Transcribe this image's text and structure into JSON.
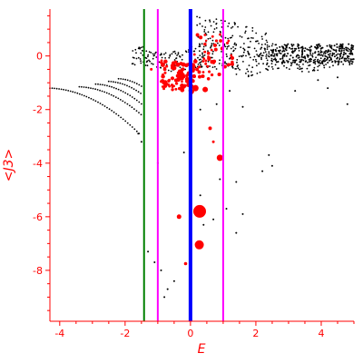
{
  "chart_data": {
    "type": "scatter",
    "xlabel": "E",
    "ylabel": "<J3>",
    "xlim": [
      -4.3,
      5.0
    ],
    "ylim": [
      -9.9,
      1.75
    ],
    "xticks": [
      -4,
      -2,
      0,
      2,
      4
    ],
    "yticks": [
      0,
      -2,
      -4,
      -6,
      -8
    ],
    "colors": {
      "axis": "#ff0000",
      "black_points": "#000000",
      "red_points": "#ff0000",
      "green_line": "#008000",
      "magenta_line": "#ff00ff",
      "blue_line": "#0000ff"
    },
    "vertical_lines": [
      {
        "x": -1.42,
        "color": "#008000",
        "width": 2
      },
      {
        "x": -1.0,
        "color": "#ff00ff",
        "width": 2
      },
      {
        "x": 0.0,
        "color": "#0000ff",
        "width": 4
      },
      {
        "x": 1.0,
        "color": "#ff00ff",
        "width": 2
      }
    ],
    "red_points": [
      {
        "x": 0.28,
        "y": -5.8,
        "r": 7
      },
      {
        "x": 0.27,
        "y": -7.05,
        "r": 5
      },
      {
        "x": 0.9,
        "y": -3.8,
        "r": 3.5
      },
      {
        "x": -0.35,
        "y": -6.0,
        "r": 2.5
      },
      {
        "x": 0.15,
        "y": -1.2,
        "r": 3.5
      },
      {
        "x": 0.45,
        "y": -1.25,
        "r": 3
      },
      {
        "x": -0.5,
        "y": -0.45,
        "r": 2.5
      },
      {
        "x": -0.8,
        "y": -1.0,
        "r": 2
      },
      {
        "x": 0.6,
        "y": -2.7,
        "r": 2
      },
      {
        "x": -0.15,
        "y": -7.75,
        "r": 1.8
      },
      {
        "x": 0.55,
        "y": -0.85,
        "r": 1.8
      },
      {
        "x": 0.75,
        "y": 0.4,
        "r": 2
      },
      {
        "x": 0.55,
        "y": 0.1,
        "r": 1.8
      },
      {
        "x": 0.15,
        "y": -0.2,
        "r": 2.3
      },
      {
        "x": 0.2,
        "y": -0.5,
        "r": 2
      },
      {
        "x": -1.2,
        "y": -0.5,
        "r": 1.5
      },
      {
        "x": 0.7,
        "y": -3.2,
        "r": 1.5
      }
    ]
  }
}
